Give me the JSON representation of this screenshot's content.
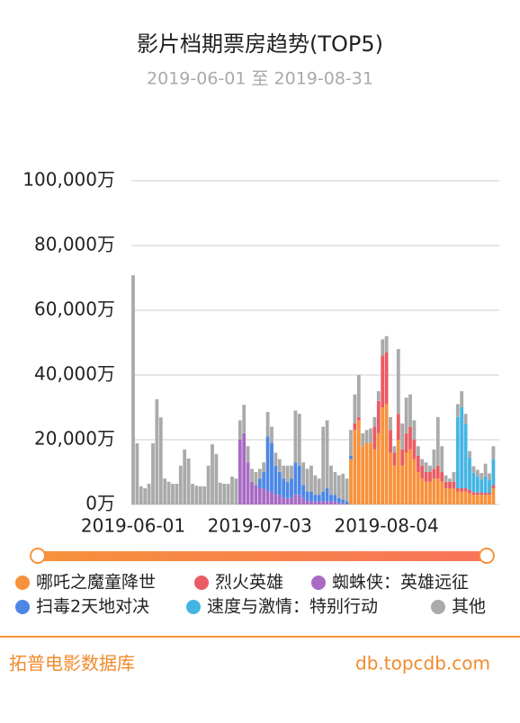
{
  "chart_data": {
    "type": "bar",
    "stacked": true,
    "title": "影片档期票房趋势(TOP5)",
    "subtitle": "2019-06-01 至 2019-08-31",
    "categories": [
      "2019-06-01",
      null,
      null,
      null,
      null,
      null,
      null,
      null,
      null,
      null,
      null,
      null,
      null,
      null,
      null,
      null,
      null,
      null,
      null,
      null,
      null,
      null,
      null,
      null,
      null,
      null,
      null,
      null,
      null,
      null,
      null,
      null,
      "2019-07-03",
      null,
      null,
      null,
      null,
      null,
      null,
      null,
      null,
      null,
      null,
      null,
      null,
      null,
      null,
      null,
      null,
      null,
      null,
      null,
      null,
      null,
      null,
      null,
      null,
      null,
      null,
      null,
      null,
      null,
      null,
      null,
      "2019-08-04",
      null,
      null,
      null,
      null,
      null,
      null,
      null,
      null,
      null,
      null,
      null,
      null,
      null,
      null,
      null,
      null,
      null,
      null,
      null,
      null,
      null,
      null,
      null,
      null,
      null,
      null,
      null
    ],
    "series": [
      {
        "name": "哪吒之魔童降世",
        "color": "#f7923b",
        "values": [
          0,
          0,
          0,
          0,
          0,
          0,
          0,
          0,
          0,
          0,
          0,
          0,
          0,
          0,
          0,
          0,
          0,
          0,
          0,
          0,
          0,
          0,
          0,
          0,
          0,
          0,
          0,
          0,
          0,
          0,
          0,
          0,
          0,
          0,
          0,
          0,
          0,
          0,
          0,
          0,
          0,
          0,
          0,
          0,
          0,
          0,
          0,
          0,
          0,
          0,
          0,
          0,
          0,
          0,
          0,
          14000,
          23000,
          26000,
          18000,
          19000,
          19000,
          17000,
          22000,
          30000,
          31000,
          16000,
          12000,
          20000,
          12000,
          16000,
          17000,
          14000,
          10000,
          8000,
          7000,
          7000,
          8000,
          8000,
          7000,
          5000,
          5000,
          5000,
          4000,
          4000,
          4000,
          3500,
          3000,
          3000,
          3000,
          3000,
          3000,
          5000
        ]
      },
      {
        "name": "烈火英雄",
        "color": "#ea5b63",
        "values": [
          0,
          0,
          0,
          0,
          0,
          0,
          0,
          0,
          0,
          0,
          0,
          0,
          0,
          0,
          0,
          0,
          0,
          0,
          0,
          0,
          0,
          0,
          0,
          0,
          0,
          0,
          0,
          0,
          0,
          0,
          0,
          0,
          0,
          0,
          0,
          0,
          0,
          0,
          0,
          0,
          0,
          0,
          0,
          0,
          0,
          0,
          0,
          0,
          0,
          0,
          0,
          0,
          0,
          0,
          0,
          0,
          2000,
          1000,
          0,
          0,
          0,
          7000,
          10000,
          16000,
          16000,
          7000,
          4000,
          8000,
          5000,
          6000,
          7000,
          6000,
          5000,
          4000,
          3000,
          3000,
          3000,
          4000,
          3000,
          2000,
          2000,
          2000,
          1000,
          1000,
          1000,
          1000,
          800,
          700,
          700,
          600,
          600,
          1000
        ]
      },
      {
        "name": "蜘蛛侠：英雄远征",
        "color": "#a86ac4",
        "values": [
          0,
          0,
          0,
          0,
          0,
          0,
          0,
          0,
          0,
          0,
          0,
          0,
          0,
          0,
          0,
          0,
          0,
          0,
          0,
          0,
          0,
          0,
          0,
          0,
          0,
          0,
          0,
          20000,
          22000,
          13000,
          7000,
          6000,
          5000,
          5000,
          4000,
          4000,
          3000,
          3000,
          2000,
          2000,
          2000,
          3000,
          3000,
          2000,
          1000,
          1000,
          1000,
          1000,
          1000,
          1000,
          1000,
          1000,
          500,
          500,
          0,
          0,
          0,
          0,
          0,
          0,
          0,
          0,
          0,
          0,
          0,
          0,
          0,
          0,
          0,
          0,
          0,
          0,
          0,
          0,
          0,
          0,
          0,
          0,
          0,
          0,
          0,
          0,
          0,
          0,
          0,
          0,
          0,
          0,
          0,
          0,
          0,
          0
        ]
      },
      {
        "name": "扫毒2天地对决",
        "color": "#4c87e6",
        "values": [
          0,
          0,
          0,
          0,
          0,
          0,
          0,
          0,
          0,
          0,
          0,
          0,
          0,
          0,
          0,
          0,
          0,
          0,
          0,
          0,
          0,
          0,
          0,
          0,
          0,
          0,
          0,
          0,
          0,
          0,
          0,
          0,
          3000,
          5000,
          17000,
          15000,
          9000,
          7000,
          6000,
          5000,
          6000,
          10000,
          9000,
          4000,
          3000,
          3000,
          2000,
          2000,
          3000,
          4000,
          2000,
          2000,
          1500,
          1000,
          1000,
          1000,
          0,
          0,
          0,
          0,
          0,
          0,
          0,
          0,
          0,
          0,
          0,
          0,
          0,
          0,
          0,
          0,
          0,
          0,
          0,
          0,
          0,
          0,
          0,
          0,
          0,
          0,
          0,
          0,
          0,
          0,
          0,
          0,
          0,
          0,
          0,
          0
        ]
      },
      {
        "name": "速度与激情：特别行动",
        "color": "#44b5e3",
        "values": [
          0,
          0,
          0,
          0,
          0,
          0,
          0,
          0,
          0,
          0,
          0,
          0,
          0,
          0,
          0,
          0,
          0,
          0,
          0,
          0,
          0,
          0,
          0,
          0,
          0,
          0,
          0,
          0,
          0,
          0,
          0,
          0,
          0,
          0,
          0,
          0,
          0,
          0,
          0,
          0,
          0,
          0,
          0,
          0,
          0,
          0,
          0,
          0,
          0,
          0,
          0,
          0,
          0,
          0,
          0,
          0,
          0,
          0,
          0,
          0,
          0,
          0,
          0,
          0,
          0,
          0,
          0,
          0,
          0,
          0,
          0,
          0,
          0,
          0,
          0,
          0,
          0,
          0,
          0,
          0,
          0,
          0,
          22000,
          25000,
          20000,
          10000,
          6000,
          5000,
          4000,
          5000,
          4000,
          8000
        ]
      },
      {
        "name": "其他",
        "color": "#aaaaaa",
        "values": [
          70800,
          18900,
          5600,
          5000,
          6400,
          18900,
          32500,
          26900,
          8000,
          7000,
          6400,
          6400,
          12000,
          17000,
          14200,
          6400,
          5800,
          5600,
          5600,
          12000,
          18600,
          15600,
          6700,
          6400,
          6400,
          8600,
          8000,
          6000,
          8800,
          5000,
          4000,
          4000,
          3000,
          3000,
          7600,
          5000,
          4000,
          4000,
          4000,
          5000,
          4000,
          16000,
          16000,
          7000,
          7000,
          8000,
          6000,
          5000,
          20000,
          21000,
          9000,
          7000,
          7000,
          8000,
          7000,
          8000,
          9000,
          13000,
          4000,
          4000,
          4500,
          3000,
          3000,
          5000,
          5000,
          4000,
          2000,
          20000,
          8000,
          11000,
          10000,
          6000,
          3000,
          2000,
          3000,
          2000,
          6000,
          15000,
          8000,
          2000,
          1000,
          3000,
          4000,
          5000,
          3000,
          2000,
          2000,
          2000,
          2000,
          4000,
          2000,
          4000
        ]
      }
    ],
    "ylim": [
      0,
      100000
    ],
    "yticks": [
      {
        "value": 0,
        "label": "0万"
      },
      {
        "value": 20000,
        "label": "20,000万"
      },
      {
        "value": 40000,
        "label": "40,000万"
      },
      {
        "value": 60000,
        "label": "60,000万"
      },
      {
        "value": 80000,
        "label": "80,000万"
      },
      {
        "value": 100000,
        "label": "100,000万"
      }
    ],
    "grid": true
  },
  "footer": {
    "left": "拓普电影数据库",
    "right": "db.topcdb.com"
  }
}
